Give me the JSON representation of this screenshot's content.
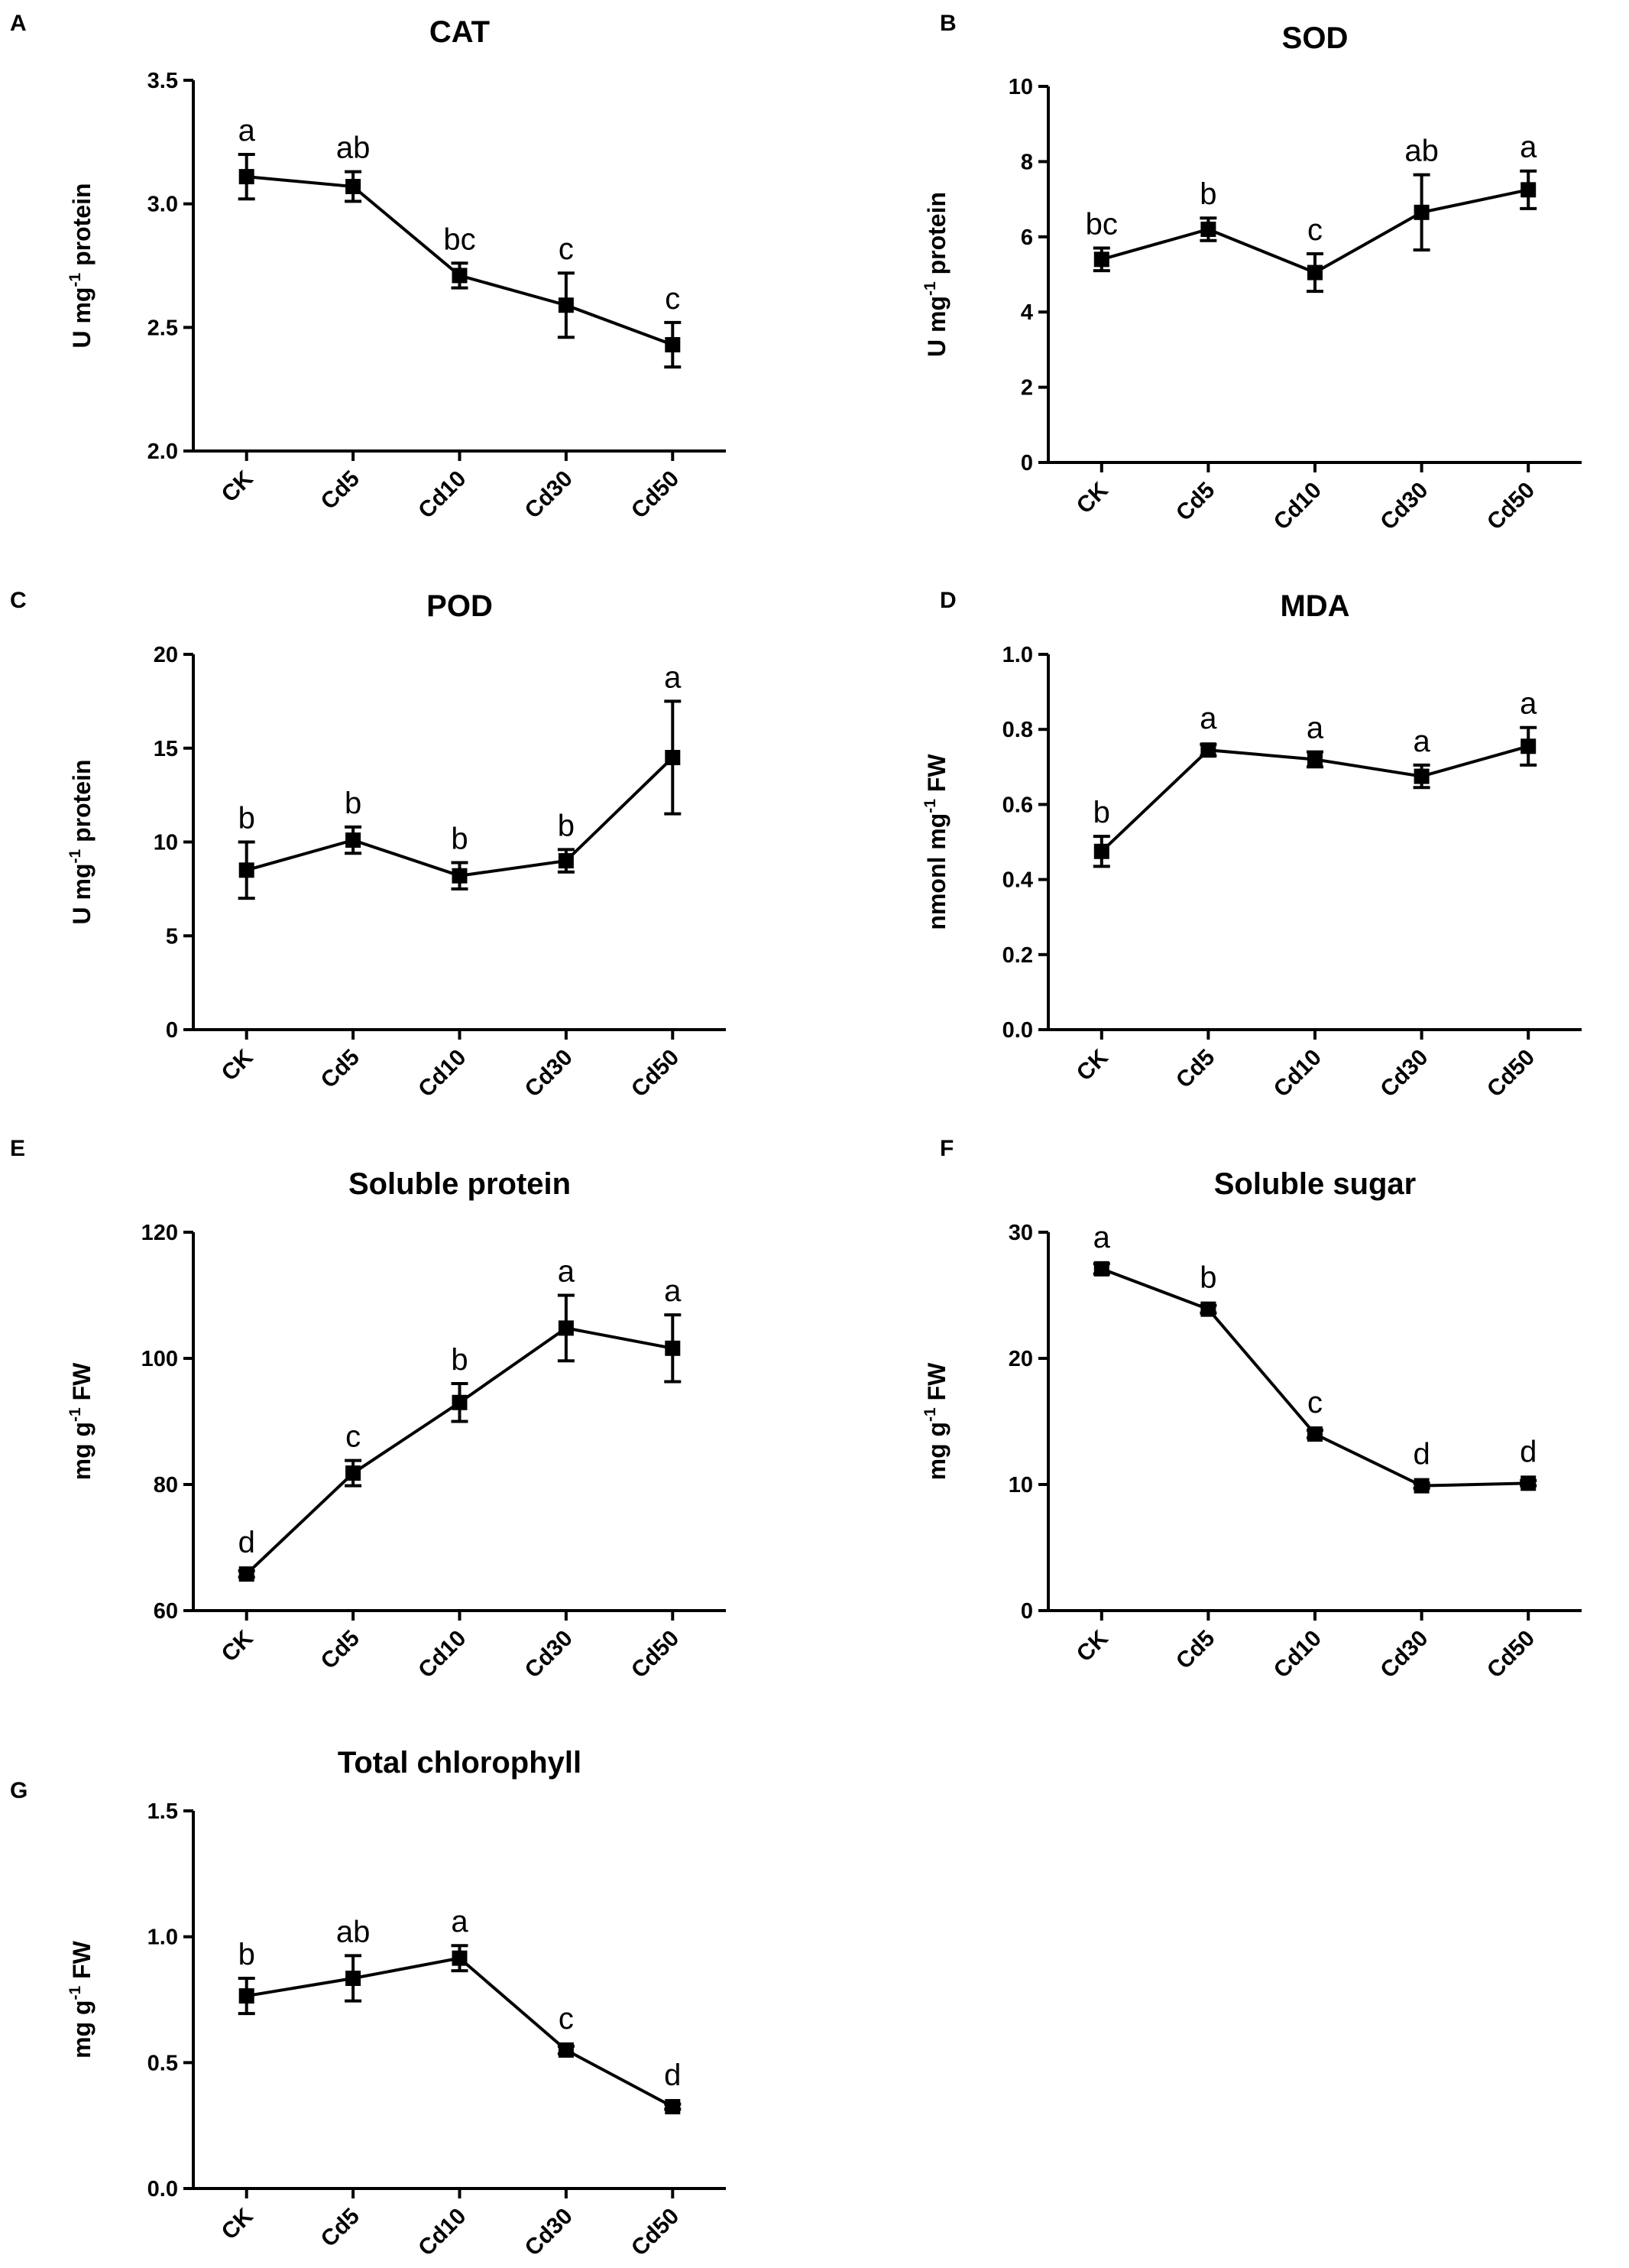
{
  "figure": {
    "background": "#ffffff",
    "ink": "#000000"
  },
  "chart_data": [
    {
      "panel": "A",
      "type": "line",
      "title": "CAT",
      "ylabel": {
        "pre": "U mg",
        "sup": "-1",
        "post": " protein"
      },
      "categories": [
        "CK",
        "Cd5",
        "Cd10",
        "Cd30",
        "Cd50"
      ],
      "values": [
        3.11,
        3.07,
        2.71,
        2.59,
        2.43
      ],
      "errors": [
        0.09,
        0.06,
        0.05,
        0.13,
        0.09
      ],
      "significance": [
        "a",
        "ab",
        "bc",
        "c",
        "c"
      ],
      "ylim": [
        2.0,
        3.5
      ],
      "yticks": [
        2.0,
        2.5,
        3.0,
        3.5
      ],
      "ytick_labels": [
        "2.0",
        "2.5",
        "3.0",
        "3.5"
      ]
    },
    {
      "panel": "B",
      "type": "line",
      "title": "SOD",
      "ylabel": {
        "pre": "U mg",
        "sup": "-1",
        "post": " protein"
      },
      "categories": [
        "CK",
        "Cd5",
        "Cd10",
        "Cd30",
        "Cd50"
      ],
      "values": [
        5.4,
        6.2,
        5.05,
        6.65,
        7.25
      ],
      "errors": [
        0.3,
        0.3,
        0.5,
        1.0,
        0.5
      ],
      "significance": [
        "bc",
        "b",
        "c",
        "ab",
        "a"
      ],
      "ylim": [
        0,
        10
      ],
      "yticks": [
        0,
        2,
        4,
        6,
        8,
        10
      ],
      "ytick_labels": [
        "0",
        "2",
        "4",
        "6",
        "8",
        "10"
      ]
    },
    {
      "panel": "C",
      "type": "line",
      "title": "POD",
      "ylabel": {
        "pre": "U mg",
        "sup": "-1",
        "post": " protein"
      },
      "categories": [
        "CK",
        "Cd5",
        "Cd10",
        "Cd30",
        "Cd50"
      ],
      "values": [
        8.5,
        10.1,
        8.2,
        9.0,
        14.5
      ],
      "errors": [
        1.5,
        0.7,
        0.7,
        0.6,
        3.0
      ],
      "significance": [
        "b",
        "b",
        "b",
        "b",
        "a"
      ],
      "ylim": [
        0,
        20
      ],
      "yticks": [
        0,
        5,
        10,
        15,
        20
      ],
      "ytick_labels": [
        "0",
        "5",
        "10",
        "15",
        "20"
      ]
    },
    {
      "panel": "D",
      "type": "line",
      "title": "MDA",
      "ylabel": {
        "pre": "nmonl mg",
        "sup": "-1",
        "post": " FW"
      },
      "categories": [
        "CK",
        "Cd5",
        "Cd10",
        "Cd30",
        "Cd50"
      ],
      "values": [
        0.475,
        0.745,
        0.72,
        0.675,
        0.755
      ],
      "errors": [
        0.04,
        0.015,
        0.02,
        0.03,
        0.05
      ],
      "significance": [
        "b",
        "a",
        "a",
        "a",
        "a"
      ],
      "ylim": [
        0,
        1.0
      ],
      "yticks": [
        0,
        0.2,
        0.4,
        0.6,
        0.8,
        1.0
      ],
      "ytick_labels": [
        "0.0",
        "0.2",
        "0.4",
        "0.6",
        "0.8",
        "1.0"
      ]
    },
    {
      "panel": "E",
      "type": "line",
      "title": "Soluble protein",
      "ylabel": {
        "pre": "mg g",
        "sup": "-1",
        "post": " FW"
      },
      "categories": [
        "CK",
        "Cd5",
        "Cd10",
        "Cd30",
        "Cd50"
      ],
      "values": [
        65.8,
        81.8,
        93.0,
        104.8,
        101.6
      ],
      "errors": [
        0.5,
        2.0,
        3.0,
        5.2,
        5.3
      ],
      "significance": [
        "d",
        "c",
        "b",
        "a",
        "a"
      ],
      "ylim": [
        60,
        120
      ],
      "yticks": [
        60,
        80,
        100,
        120
      ],
      "ytick_labels": [
        "60",
        "80",
        "100",
        "120"
      ]
    },
    {
      "panel": "F",
      "type": "line",
      "title": "Soluble sugar",
      "ylabel": {
        "pre": "mg g",
        "sup": "-1",
        "post": " FW"
      },
      "categories": [
        "CK",
        "Cd5",
        "Cd10",
        "Cd30",
        "Cd50"
      ],
      "values": [
        27.1,
        23.9,
        14.0,
        9.9,
        10.1
      ],
      "errors": [
        0.4,
        0.3,
        0.3,
        0.2,
        0.2
      ],
      "significance": [
        "a",
        "b",
        "c",
        "d",
        "d"
      ],
      "ylim": [
        0,
        30
      ],
      "yticks": [
        0,
        10,
        20,
        30
      ],
      "ytick_labels": [
        "0",
        "10",
        "20",
        "30"
      ]
    },
    {
      "panel": "G",
      "type": "line",
      "title": "Total chlorophyll",
      "ylabel": {
        "pre": "mg g",
        "sup": "-1",
        "post": " FW"
      },
      "categories": [
        "CK",
        "Cd5",
        "Cd10",
        "Cd30",
        "Cd50"
      ],
      "values": [
        0.765,
        0.835,
        0.915,
        0.55,
        0.325
      ],
      "errors": [
        0.07,
        0.09,
        0.05,
        0.015,
        0.01
      ],
      "significance": [
        "b",
        "ab",
        "a",
        "c",
        "d"
      ],
      "ylim": [
        0,
        1.5
      ],
      "yticks": [
        0,
        0.5,
        1.0,
        1.5
      ],
      "ytick_labels": [
        "0.0",
        "0.5",
        "1.0",
        "1.5"
      ]
    }
  ]
}
